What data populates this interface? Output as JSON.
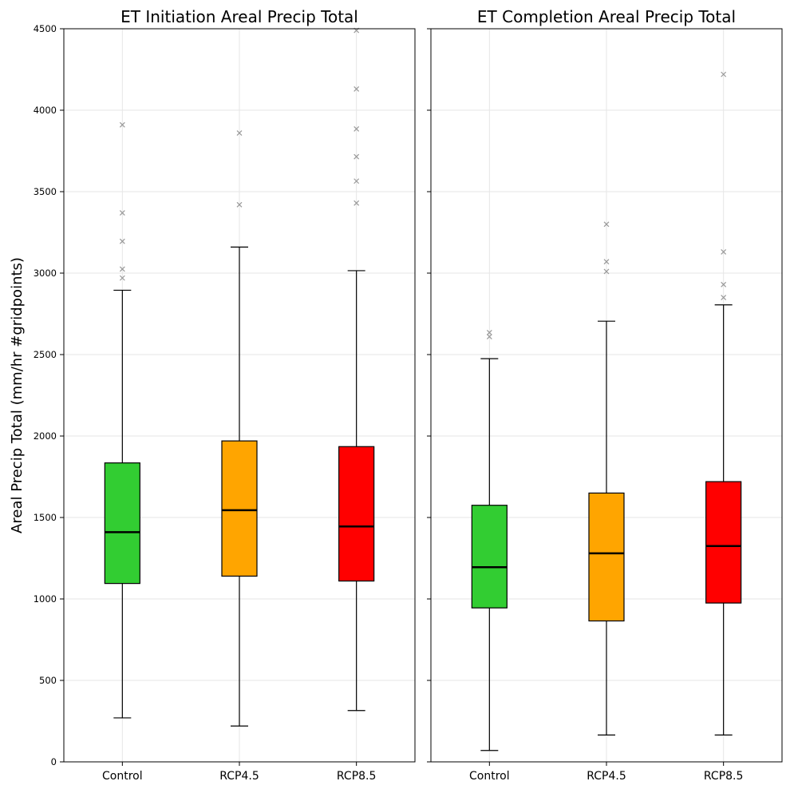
{
  "chart_data": {
    "type": "box",
    "ylabel": "Areal Precip Total (mm/hr #gridpoints)",
    "ylim": [
      0,
      4500
    ],
    "yticks": [
      0,
      500,
      1000,
      1500,
      2000,
      2500,
      3000,
      3500,
      4000,
      4500
    ],
    "grid": true,
    "categories": [
      "Control",
      "RCP4.5",
      "RCP8.5"
    ],
    "colors": {
      "Control": "#32cd32",
      "RCP4.5": "#ffa500",
      "RCP8.5": "#ff0000"
    },
    "panels": [
      {
        "title": "ET Initiation Areal Precip Total",
        "boxes": [
          {
            "category": "Control",
            "whisker_low": 270,
            "q1": 1095,
            "median": 1410,
            "q3": 1835,
            "whisker_high": 2895,
            "outliers": [
              2970,
              3025,
              3195,
              3370,
              3910
            ]
          },
          {
            "category": "RCP4.5",
            "whisker_low": 220,
            "q1": 1140,
            "median": 1545,
            "q3": 1970,
            "whisker_high": 3160,
            "outliers": [
              3420,
              3860
            ]
          },
          {
            "category": "RCP8.5",
            "whisker_low": 315,
            "q1": 1110,
            "median": 1445,
            "q3": 1935,
            "whisker_high": 3015,
            "outliers": [
              3430,
              3565,
              3715,
              3885,
              4130,
              4490
            ]
          }
        ]
      },
      {
        "title": "ET Completion Areal Precip Total",
        "boxes": [
          {
            "category": "Control",
            "whisker_low": 70,
            "q1": 945,
            "median": 1195,
            "q3": 1575,
            "whisker_high": 2475,
            "outliers": [
              2610,
              2635
            ]
          },
          {
            "category": "RCP4.5",
            "whisker_low": 165,
            "q1": 865,
            "median": 1280,
            "q3": 1650,
            "whisker_high": 2705,
            "outliers": [
              3010,
              3070,
              3300
            ]
          },
          {
            "category": "RCP8.5",
            "whisker_low": 165,
            "q1": 975,
            "median": 1325,
            "q3": 1720,
            "whisker_high": 2805,
            "outliers": [
              2850,
              2930,
              3130,
              4220
            ]
          }
        ]
      }
    ]
  }
}
